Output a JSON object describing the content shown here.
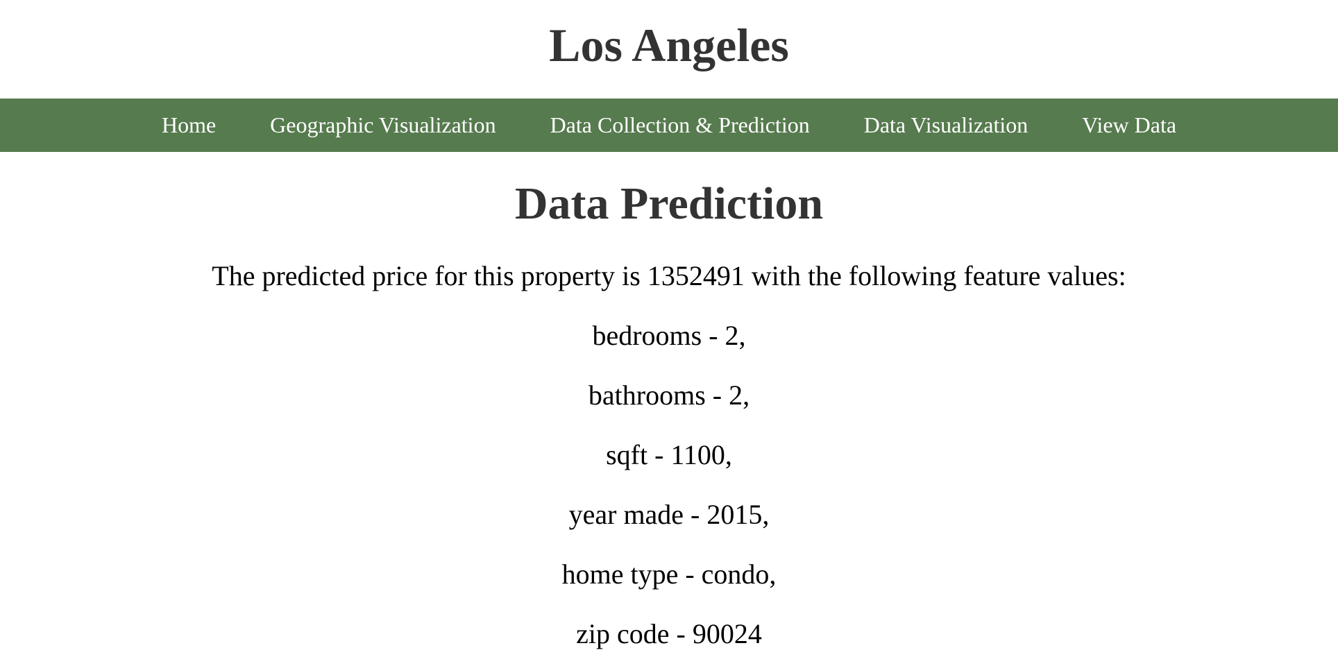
{
  "site": {
    "title": "Los Angeles"
  },
  "nav": {
    "items": [
      {
        "label": "Home"
      },
      {
        "label": "Geographic Visualization"
      },
      {
        "label": "Data Collection & Prediction"
      },
      {
        "label": "Data Visualization"
      },
      {
        "label": "View Data"
      }
    ]
  },
  "main": {
    "heading": "Data Prediction",
    "intro": "The predicted price for this property is 1352491 with the following feature values:",
    "features": [
      {
        "text": "bedrooms - 2,"
      },
      {
        "text": "bathrooms - 2,"
      },
      {
        "text": "sqft - 1100,"
      },
      {
        "text": "year made - 2015,"
      },
      {
        "text": "home type - condo,"
      },
      {
        "text": "zip code - 90024"
      }
    ]
  },
  "colors": {
    "nav_background": "#567b4e",
    "heading_text": "#333333",
    "nav_text": "#ffffff"
  }
}
